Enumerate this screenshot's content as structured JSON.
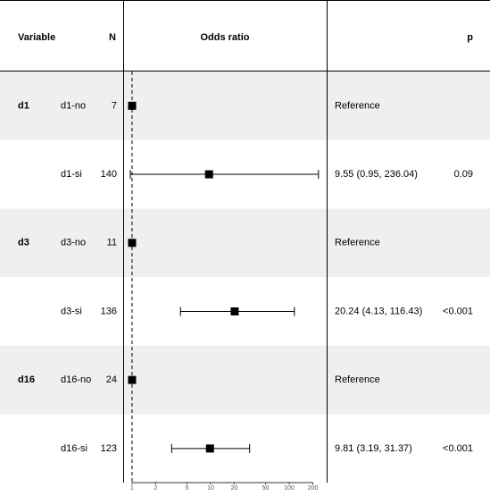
{
  "chart_data": {
    "type": "forest",
    "headers": {
      "variable": "Variable",
      "n": "N",
      "estimate": "Odds ratio",
      "p": "p"
    },
    "groups": [
      "d1",
      null,
      "d3",
      null,
      "d16",
      null
    ],
    "categories": [
      "d1-no",
      "d1-si",
      "d3-no",
      "d3-si",
      "d16-no",
      "d16-si"
    ],
    "n": [
      7,
      140,
      11,
      136,
      24,
      123
    ],
    "values": [
      1,
      9.55,
      1,
      20.24,
      1,
      9.81
    ],
    "lower": [
      null,
      0.95,
      null,
      4.13,
      null,
      3.19
    ],
    "upper": [
      null,
      236.04,
      null,
      116.43,
      null,
      31.37
    ],
    "estimate_text": [
      "Reference",
      "9.55 (0.95, 236.04)",
      "Reference",
      "20.24 (4.13, 116.43)",
      "Reference",
      "9.81 (3.19, 31.37)"
    ],
    "p": [
      null,
      0.09,
      null,
      "<0.001",
      null,
      "<0.001"
    ],
    "xlim": [
      0.77,
      300
    ],
    "xticks": [
      1,
      2,
      5,
      10,
      20,
      50,
      100,
      200
    ],
    "log_scale": true,
    "reference_line": 1,
    "color": "#000000",
    "stripe_color": "#efefef"
  }
}
